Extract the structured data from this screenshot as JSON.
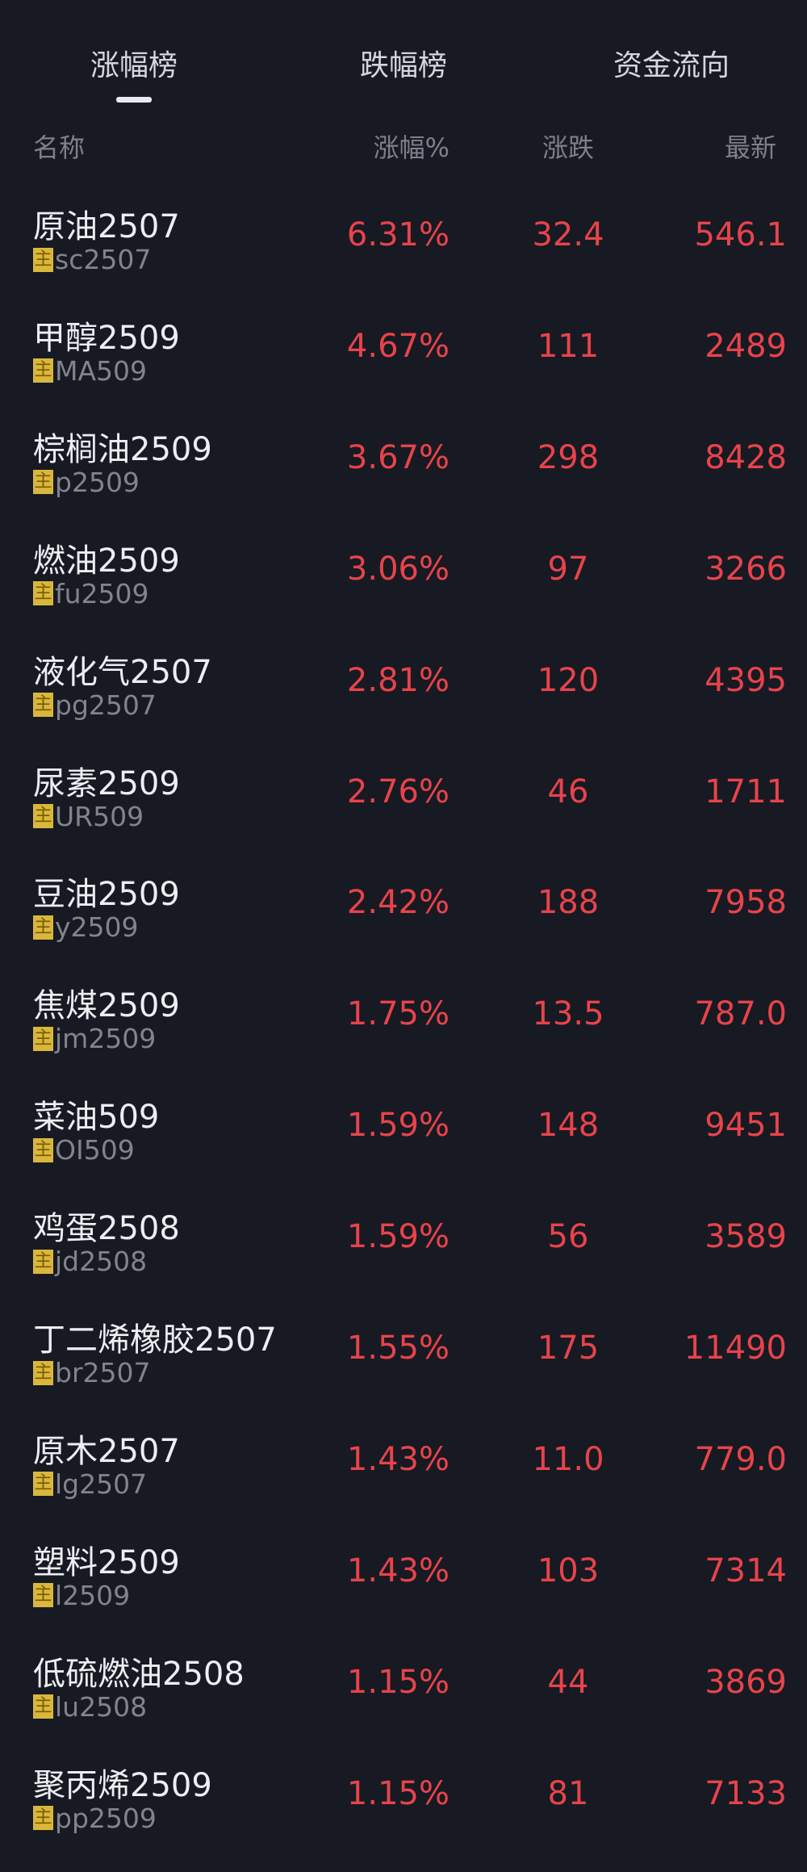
{
  "tabs": [
    {
      "label": "涨幅榜",
      "active": true
    },
    {
      "label": "跌幅榜",
      "active": false
    },
    {
      "label": "资金流向",
      "active": false
    }
  ],
  "columns": {
    "name": "名称",
    "pct": "涨幅%",
    "change": "涨跌",
    "latest": "最新"
  },
  "badge_label": "主",
  "colors": {
    "background": "#171a22",
    "up": "#e8434b",
    "badge": "#d9b73c"
  },
  "rows": [
    {
      "name": "原油2507",
      "code": "sc2507",
      "pct": "6.31%",
      "change": "32.4",
      "latest": "546.1"
    },
    {
      "name": "甲醇2509",
      "code": "MA509",
      "pct": "4.67%",
      "change": "111",
      "latest": "2489"
    },
    {
      "name": "棕榈油2509",
      "code": "p2509",
      "pct": "3.67%",
      "change": "298",
      "latest": "8428"
    },
    {
      "name": "燃油2509",
      "code": "fu2509",
      "pct": "3.06%",
      "change": "97",
      "latest": "3266"
    },
    {
      "name": "液化气2507",
      "code": "pg2507",
      "pct": "2.81%",
      "change": "120",
      "latest": "4395"
    },
    {
      "name": "尿素2509",
      "code": "UR509",
      "pct": "2.76%",
      "change": "46",
      "latest": "1711"
    },
    {
      "name": "豆油2509",
      "code": "y2509",
      "pct": "2.42%",
      "change": "188",
      "latest": "7958"
    },
    {
      "name": "焦煤2509",
      "code": "jm2509",
      "pct": "1.75%",
      "change": "13.5",
      "latest": "787.0"
    },
    {
      "name": "菜油509",
      "code": "OI509",
      "pct": "1.59%",
      "change": "148",
      "latest": "9451"
    },
    {
      "name": "鸡蛋2508",
      "code": "jd2508",
      "pct": "1.59%",
      "change": "56",
      "latest": "3589"
    },
    {
      "name": "丁二烯橡胶2507",
      "code": "br2507",
      "pct": "1.55%",
      "change": "175",
      "latest": "11490"
    },
    {
      "name": "原木2507",
      "code": "lg2507",
      "pct": "1.43%",
      "change": "11.0",
      "latest": "779.0"
    },
    {
      "name": "塑料2509",
      "code": "l2509",
      "pct": "1.43%",
      "change": "103",
      "latest": "7314"
    },
    {
      "name": "低硫燃油2508",
      "code": "lu2508",
      "pct": "1.15%",
      "change": "44",
      "latest": "3869"
    },
    {
      "name": "聚丙烯2509",
      "code": "pp2509",
      "pct": "1.15%",
      "change": "81",
      "latest": "7133"
    }
  ]
}
